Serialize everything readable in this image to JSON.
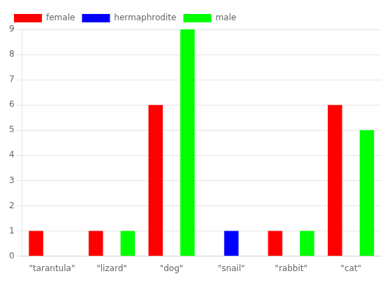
{
  "chart_data": {
    "type": "bar",
    "categories": [
      "\"tarantula\"",
      "\"lizard\"",
      "\"dog\"",
      "\"snail\"",
      "\"rabbit\"",
      "\"cat\""
    ],
    "series": [
      {
        "name": "female",
        "color": "#ff0000",
        "values": [
          1,
          1,
          6,
          0,
          1,
          6
        ]
      },
      {
        "name": "hermaphrodite",
        "color": "#0000ff",
        "values": [
          0,
          0,
          0,
          1,
          0,
          0
        ]
      },
      {
        "name": "male",
        "color": "#00ff00",
        "values": [
          0,
          1,
          9,
          0,
          1,
          5
        ]
      }
    ],
    "ylim": [
      0,
      9
    ],
    "yticks": [
      0,
      1,
      2,
      3,
      4,
      5,
      6,
      7,
      8,
      9
    ],
    "grid": true,
    "legend": "upper left"
  }
}
